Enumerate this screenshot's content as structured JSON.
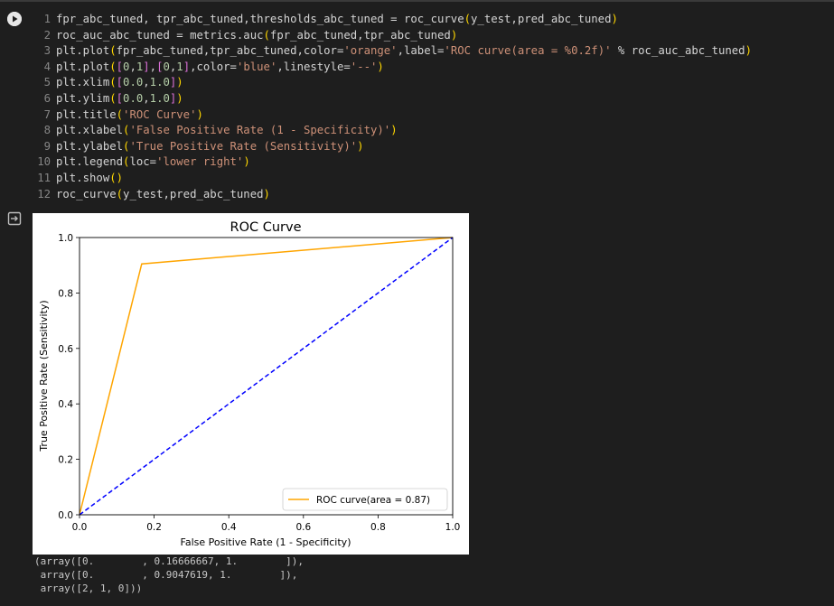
{
  "cell": {
    "code_lines": [
      {
        "no": "1",
        "text": "fpr_abc_tuned, tpr_abc_tuned,thresholds_abc_tuned = roc_curve(y_test,pred_abc_tuned)"
      },
      {
        "no": "2",
        "text": "roc_auc_abc_tuned = metrics.auc(fpr_abc_tuned,tpr_abc_tuned)"
      },
      {
        "no": "3",
        "text": "plt.plot(fpr_abc_tuned,tpr_abc_tuned,color='orange',label='ROC curve(area = %0.2f)' % roc_auc_abc_tuned)"
      },
      {
        "no": "4",
        "text": "plt.plot([0,1],[0,1],color='blue',linestyle='--')"
      },
      {
        "no": "5",
        "text": "plt.xlim([0.0,1.0])"
      },
      {
        "no": "6",
        "text": "plt.ylim([0.0,1.0])"
      },
      {
        "no": "7",
        "text": "plt.title('ROC Curve')"
      },
      {
        "no": "8",
        "text": "plt.xlabel('False Positive Rate (1 - Specificity)')"
      },
      {
        "no": "9",
        "text": "plt.ylabel('True Positive Rate (Sensitivity)')"
      },
      {
        "no": "10",
        "text": "plt.legend(loc='lower right')"
      },
      {
        "no": "11",
        "text": "plt.show()"
      },
      {
        "no": "12",
        "text": "roc_curve(y_test,pred_abc_tuned)"
      }
    ]
  },
  "icons": {
    "run": "run-play-icon",
    "output": "output-redirect-icon"
  },
  "chart_data": {
    "type": "line",
    "title": "ROC Curve",
    "xlabel": "False Positive Rate (1 - Specificity)",
    "ylabel": "True Positive Rate (Sensitivity)",
    "xlim": [
      0.0,
      1.0
    ],
    "ylim": [
      0.0,
      1.0
    ],
    "xticks": [
      "0.0",
      "0.2",
      "0.4",
      "0.6",
      "0.8",
      "1.0"
    ],
    "yticks": [
      "0.0",
      "0.2",
      "0.4",
      "0.6",
      "0.8",
      "1.0"
    ],
    "grid": false,
    "legend_position": "lower right",
    "series": [
      {
        "name": "ROC curve(area = 0.87)",
        "color": "#ffa500",
        "style": "solid",
        "x": [
          0.0,
          0.16666667,
          1.0
        ],
        "y": [
          0.0,
          0.9047619,
          1.0
        ]
      },
      {
        "color": "#0000ff",
        "style": "dashed",
        "x": [
          0,
          1
        ],
        "y": [
          0,
          1
        ]
      }
    ]
  },
  "output_text": [
    "(array([0.        , 0.16666667, 1.        ]),",
    " array([0.        , 0.9047619, 1.        ]),",
    " array([2, 1, 0]))"
  ]
}
